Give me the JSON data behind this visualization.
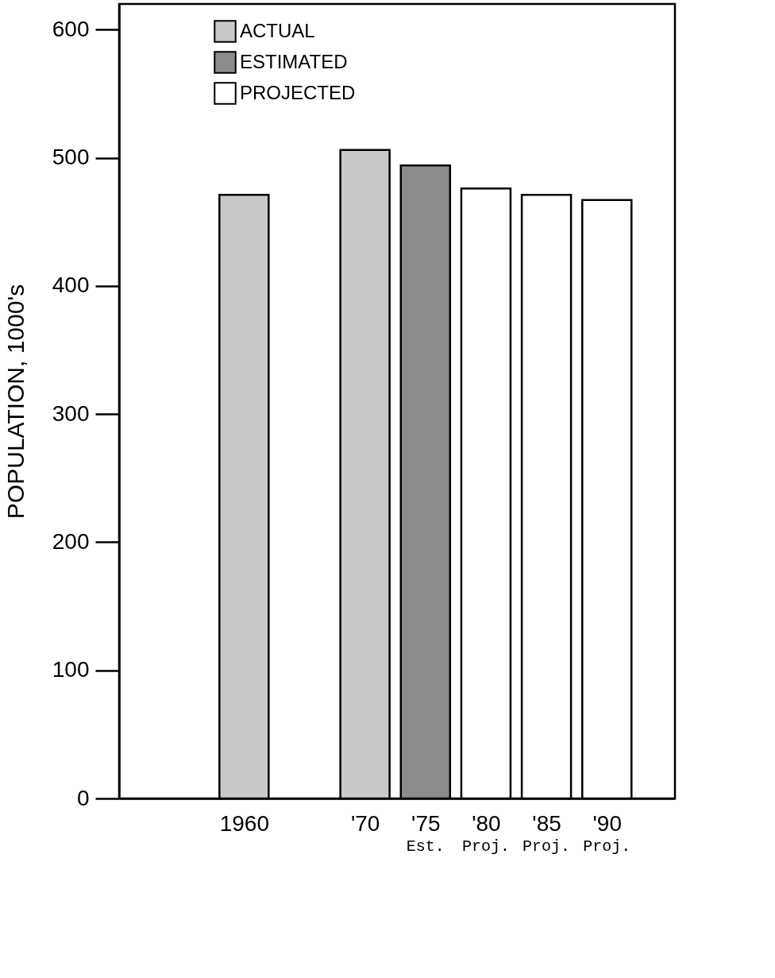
{
  "chart_data": {
    "type": "bar",
    "ylabel": "POPULATION, 1000's",
    "x": [
      1960,
      1970,
      1975,
      1980,
      1985,
      1990
    ],
    "series": [
      {
        "name": "ACTUAL",
        "color": "#c8c8c8",
        "values": [
          471,
          506,
          null,
          null,
          null,
          null
        ]
      },
      {
        "name": "ESTIMATED",
        "color": "#8c8c8c",
        "values": [
          null,
          null,
          494,
          null,
          null,
          null
        ]
      },
      {
        "name": "PROJECTED",
        "color": "#ffffff",
        "values": [
          null,
          null,
          null,
          476,
          471,
          467
        ]
      }
    ],
    "xlim": [
      1950,
      1995.3
    ],
    "xticks": [
      1960,
      {
        "value": 1970,
        "label": "'70"
      },
      {
        "value": 1975,
        "label": "'75"
      },
      {
        "value": 1980,
        "label": "'80"
      },
      {
        "value": 1985,
        "label": "'85"
      },
      {
        "value": 1990,
        "label": "'90"
      }
    ],
    "annotations": [
      "Est.",
      "Proj.",
      "Proj.",
      "Proj."
    ],
    "ylim": [
      0,
      620
    ],
    "yticks": [
      0,
      100,
      200,
      300,
      400,
      500,
      600
    ],
    "grid": false,
    "legend": "top left"
  }
}
